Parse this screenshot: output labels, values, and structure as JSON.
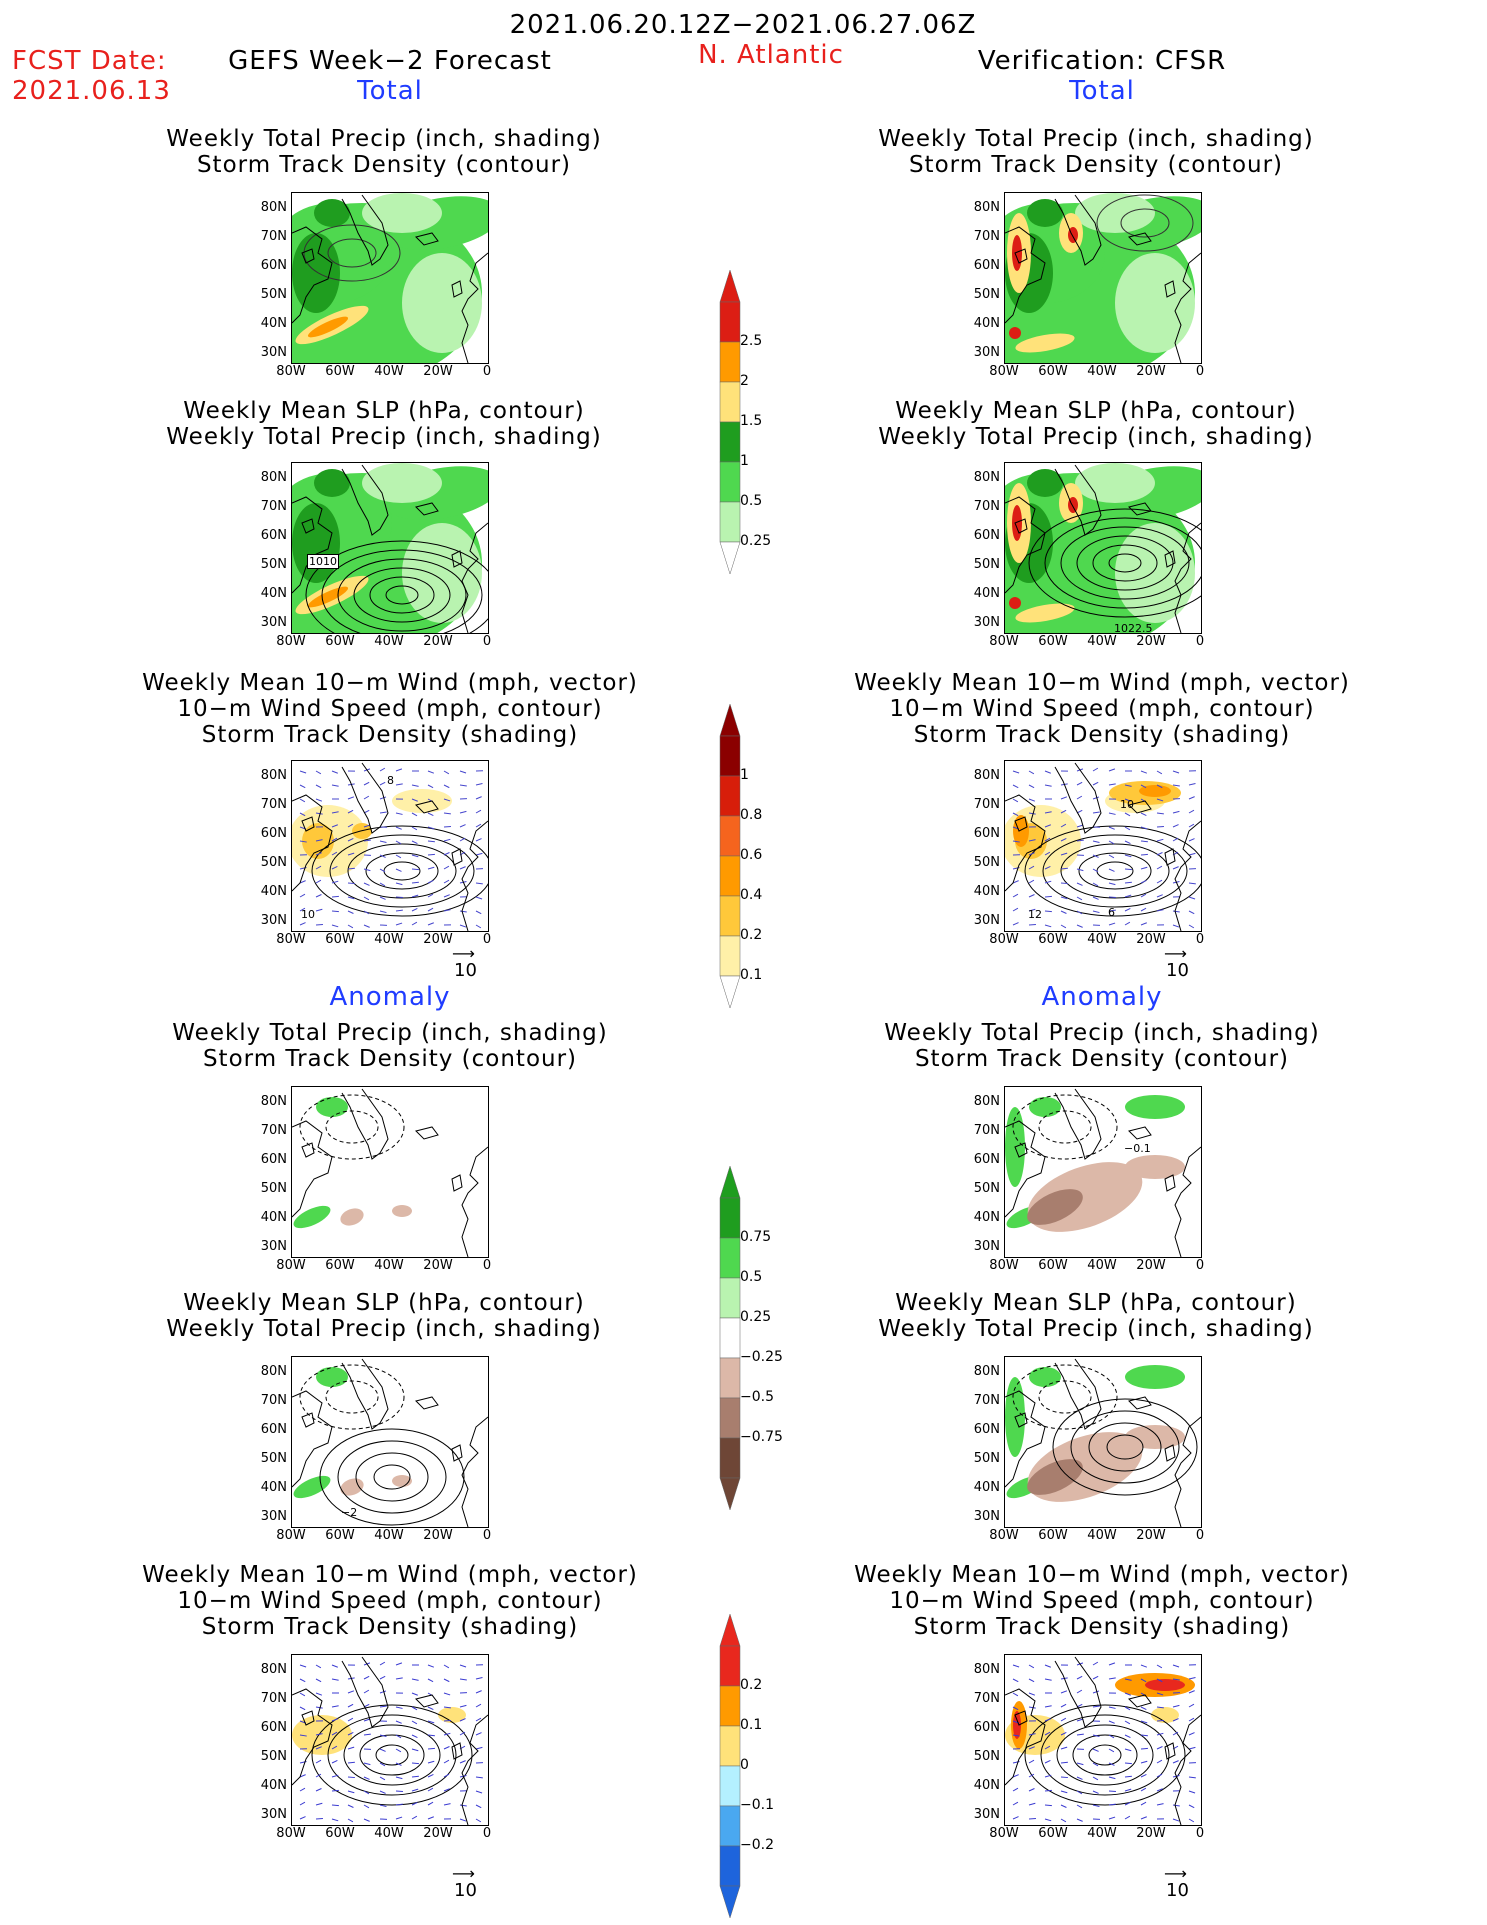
{
  "header": {
    "date_range": "2021.06.20.12Z−2021.06.27.06Z",
    "fcst_label": "FCST Date:",
    "fcst_date": "2021.06.13",
    "forecast_title": "GEFS Week−2 Forecast",
    "region": "N. Atlantic",
    "verification": "Verification: CFSR"
  },
  "sections": {
    "total": "Total",
    "anomaly": "Anomaly"
  },
  "panel_titles": {
    "precip_storm": [
      "Weekly Total Precip (inch, shading)",
      "Storm Track Density (contour)"
    ],
    "slp_precip": [
      "Weekly Mean SLP (hPa, contour)",
      "Weekly Total Precip (inch, shading)"
    ],
    "wind_storm": [
      "Weekly Mean 10−m Wind (mph, vector)",
      "10−m Wind Speed (mph, contour)",
      "Storm Track Density (shading)"
    ]
  },
  "axes": {
    "lat_labels": [
      "80N",
      "70N",
      "60N",
      "50N",
      "40N",
      "30N"
    ],
    "lon_labels": [
      "80W",
      "60W",
      "40W",
      "20W",
      "0"
    ]
  },
  "map_labels": {
    "slp_total_fcst": "1010",
    "slp_total_ver": "1022.5",
    "wind_total_fcst_a": "8",
    "wind_total_fcst_b": "10",
    "wind_total_ver_a": "10",
    "wind_total_ver_b": "12",
    "wind_total_ver_c": "6",
    "anom_precip_ver": "−0.1",
    "anom_slp_fcst": "−2"
  },
  "vector_reference": "10",
  "colorbars": {
    "precip_total": {
      "labels": [
        "2.5",
        "2",
        "1.5",
        "1",
        "0.5",
        "0.25"
      ],
      "colors": [
        "#dc1e14",
        "#ff9a00",
        "#ffe27a",
        "#1f9d1f",
        "#4fd84f",
        "#b9f3b0"
      ]
    },
    "storm_total": {
      "labels": [
        "1",
        "0.8",
        "0.6",
        "0.4",
        "0.2",
        "0.1"
      ],
      "colors": [
        "#8b0000",
        "#d71e0a",
        "#f5641e",
        "#ff9a00",
        "#ffc83a",
        "#fff0a8"
      ]
    },
    "precip_anom": {
      "labels": [
        "0.75",
        "0.5",
        "0.25",
        "−0.25",
        "−0.5",
        "−0.75"
      ],
      "colors": [
        "#1f9d1f",
        "#4fd84f",
        "#b9f3b0",
        "#ffffff",
        "#dcb8a8",
        "#a87e6e",
        "#6e4636"
      ]
    },
    "storm_anom": {
      "labels": [
        "0.2",
        "0.1",
        "0",
        "−0.1",
        "−0.2"
      ],
      "colors": [
        "#e8281e",
        "#ff9a00",
        "#ffe27a",
        "#b4f0ff",
        "#4aa8f0",
        "#1e64dc"
      ]
    }
  }
}
